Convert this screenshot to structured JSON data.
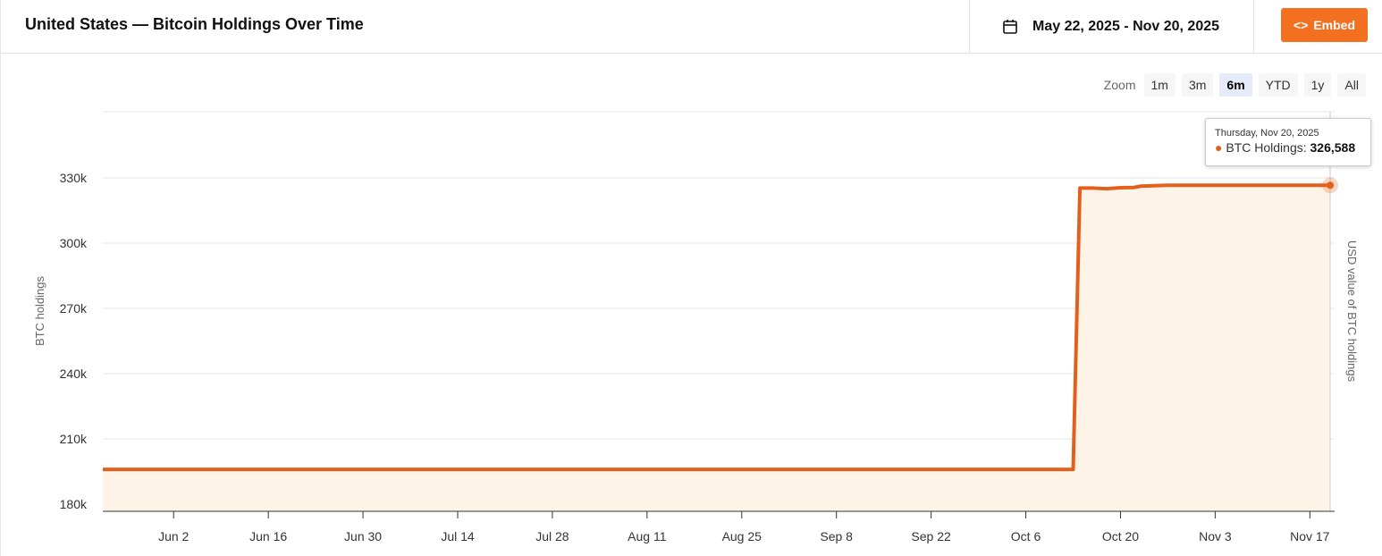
{
  "header": {
    "title": "United States — Bitcoin Holdings Over Time",
    "date_range": "May 22, 2025 - Nov 20, 2025",
    "embed_label": "Embed"
  },
  "zoom": {
    "label": "Zoom",
    "options": [
      "1m",
      "3m",
      "6m",
      "YTD",
      "1y",
      "All"
    ],
    "selected": "6m"
  },
  "tooltip": {
    "date": "Thursday, Nov 20, 2025",
    "series": "BTC Holdings:",
    "value": "326,588"
  },
  "colors": {
    "accent": "#f37021",
    "line": "#e3601c",
    "fill": "#fdf3e6"
  },
  "chart_data": {
    "type": "area",
    "ylabel": "BTC holdings",
    "y2label": "USD value of BTC holdings",
    "ylim": [
      180000,
      350000
    ],
    "yticks": [
      180000,
      210000,
      240000,
      270000,
      300000,
      330000
    ],
    "ytick_labels": [
      "180k",
      "210k",
      "240k",
      "270k",
      "300k",
      "330k"
    ],
    "xlim": [
      "2025-05-22",
      "2025-11-20"
    ],
    "xticks": [
      "2025-06-02",
      "2025-06-16",
      "2025-06-30",
      "2025-07-14",
      "2025-07-28",
      "2025-08-11",
      "2025-08-25",
      "2025-09-08",
      "2025-09-22",
      "2025-10-06",
      "2025-10-20",
      "2025-11-03",
      "2025-11-17"
    ],
    "xtick_labels": [
      "Jun 2",
      "Jun 16",
      "Jun 30",
      "Jul 14",
      "Jul 28",
      "Aug 11",
      "Aug 25",
      "Sep 8",
      "Sep 22",
      "Oct 6",
      "Oct 20",
      "Nov 3",
      "Nov 17"
    ],
    "grid": true,
    "series": [
      {
        "name": "BTC Holdings",
        "points": [
          [
            "2025-05-22",
            196000
          ],
          [
            "2025-10-13",
            196000
          ],
          [
            "2025-10-14",
            325300
          ],
          [
            "2025-10-16",
            325300
          ],
          [
            "2025-10-18",
            325000
          ],
          [
            "2025-10-20",
            325500
          ],
          [
            "2025-10-22",
            325600
          ],
          [
            "2025-10-23",
            326200
          ],
          [
            "2025-10-27",
            326588
          ],
          [
            "2025-11-20",
            326588
          ]
        ]
      }
    ]
  }
}
